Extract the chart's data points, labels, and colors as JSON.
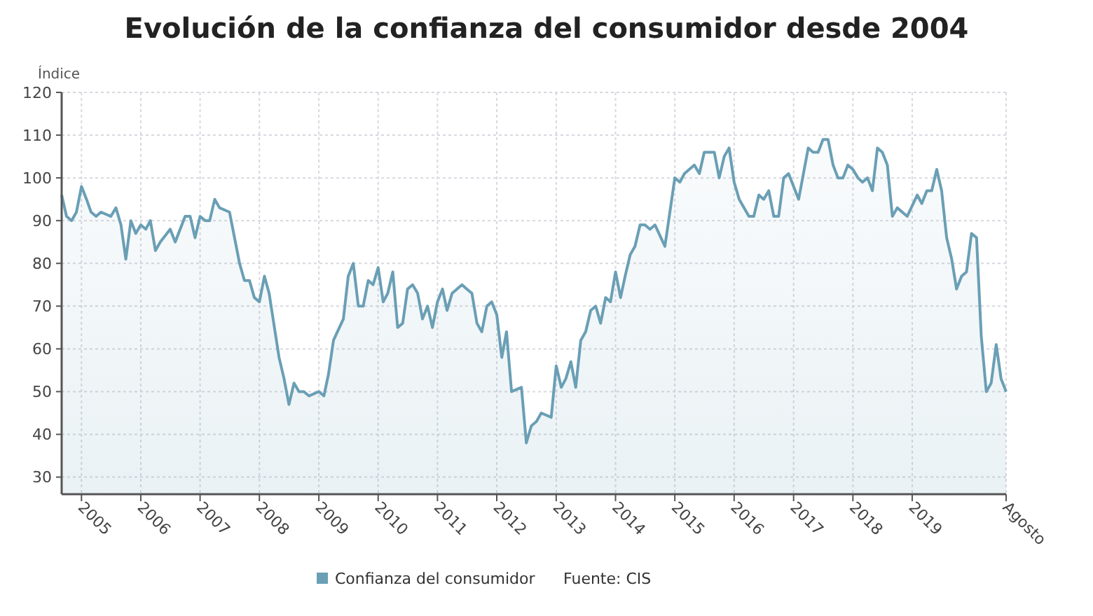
{
  "chart_data": {
    "type": "area",
    "title": "Evolución de la confianza del consumidor desde 2004",
    "ylabel": "Índice",
    "x": [
      "2004-09",
      "2004-10",
      "2004-11",
      "2004-12",
      "2005-01",
      "2005-02",
      "2005-03",
      "2005-04",
      "2005-05",
      "2005-07",
      "2005-08",
      "2005-09",
      "2005-10",
      "2005-11",
      "2005-12",
      "2006-01",
      "2006-02",
      "2006-03",
      "2006-04",
      "2006-05",
      "2006-07",
      "2006-08",
      "2006-10",
      "2006-11",
      "2006-12",
      "2007-01",
      "2007-02",
      "2007-03",
      "2007-04",
      "2007-05",
      "2007-07",
      "2007-09",
      "2007-10",
      "2007-11",
      "2007-12",
      "2008-01",
      "2008-02",
      "2008-03",
      "2008-05",
      "2008-06",
      "2008-07",
      "2008-08",
      "2008-09",
      "2008-10",
      "2008-11",
      "2009-01",
      "2009-02",
      "2009-03",
      "2009-04",
      "2009-06",
      "2009-07",
      "2009-08",
      "2009-09",
      "2009-10",
      "2009-11",
      "2009-12",
      "2010-01",
      "2010-02",
      "2010-03",
      "2010-04",
      "2010-05",
      "2010-06",
      "2010-07",
      "2010-08",
      "2010-09",
      "2010-10",
      "2010-11",
      "2010-12",
      "2011-01",
      "2011-02",
      "2011-03",
      "2011-04",
      "2011-06",
      "2011-07",
      "2011-08",
      "2011-09",
      "2011-10",
      "2011-11",
      "2011-12",
      "2012-01",
      "2012-02",
      "2012-03",
      "2012-04",
      "2012-06",
      "2012-07",
      "2012-08",
      "2012-09",
      "2012-10",
      "2012-12",
      "2013-01",
      "2013-02",
      "2013-03",
      "2013-04",
      "2013-05",
      "2013-06",
      "2013-07",
      "2013-08",
      "2013-09",
      "2013-10",
      "2013-11",
      "2013-12",
      "2014-01",
      "2014-02",
      "2014-03",
      "2014-04",
      "2014-05",
      "2014-06",
      "2014-07",
      "2014-08",
      "2014-09",
      "2014-11",
      "2015-01",
      "2015-02",
      "2015-03",
      "2015-05",
      "2015-06",
      "2015-07",
      "2015-09",
      "2015-10",
      "2015-11",
      "2015-12",
      "2016-01",
      "2016-02",
      "2016-04",
      "2016-05",
      "2016-06",
      "2016-07",
      "2016-08",
      "2016-09",
      "2016-10",
      "2016-11",
      "2016-12",
      "2017-02",
      "2017-04",
      "2017-05",
      "2017-06",
      "2017-07",
      "2017-08",
      "2017-09",
      "2017-10",
      "2017-11",
      "2017-12",
      "2018-01",
      "2018-02",
      "2018-03",
      "2018-04",
      "2018-05",
      "2018-06",
      "2018-07",
      "2018-08",
      "2018-09",
      "2018-10",
      "2018-12",
      "2019-02",
      "2019-03",
      "2019-04",
      "2019-05",
      "2019-06",
      "2019-07",
      "2019-08",
      "2019-09",
      "2019-10",
      "2019-11",
      "2019-12",
      "2020-01",
      "2020-02",
      "2020-03",
      "2020-04",
      "2020-05",
      "2020-06",
      "2020-07",
      "2020-08"
    ],
    "series": [
      {
        "name": "Confianza del consumidor",
        "color": "#6a9fb5",
        "values": [
          96,
          91,
          90,
          92,
          98,
          95,
          92,
          91,
          92,
          91,
          93,
          89,
          81,
          90,
          87,
          89,
          88,
          90,
          83,
          85,
          88,
          85,
          91,
          91,
          86,
          91,
          90,
          90,
          95,
          93,
          92,
          80,
          76,
          76,
          72,
          71,
          77,
          73,
          58,
          53,
          47,
          52,
          50,
          50,
          49,
          50,
          49,
          54,
          62,
          67,
          77,
          80,
          70,
          70,
          76,
          75,
          79,
          71,
          73,
          78,
          65,
          66,
          74,
          75,
          73,
          67,
          70,
          65,
          71,
          74,
          69,
          73,
          75,
          74,
          73,
          66,
          64,
          70,
          71,
          68,
          58,
          64,
          50,
          51,
          38,
          42,
          43,
          45,
          44,
          56,
          51,
          53,
          57,
          51,
          62,
          64,
          69,
          70,
          66,
          72,
          71,
          78,
          72,
          77,
          82,
          84,
          89,
          89,
          88,
          89,
          84,
          100,
          99,
          101,
          103,
          101,
          106,
          106,
          100,
          105,
          107,
          99,
          95,
          91,
          91,
          96,
          95,
          97,
          91,
          91,
          100,
          101,
          95,
          107,
          106,
          106,
          109,
          109,
          103,
          100,
          100,
          103,
          102,
          100,
          99,
          100,
          97,
          107,
          106,
          103,
          91,
          93,
          91,
          96,
          94,
          97,
          97,
          102,
          97,
          86,
          81,
          74,
          77,
          78,
          87,
          86,
          63,
          50,
          52,
          61,
          53,
          50
        ]
      }
    ],
    "xlim": [
      "2004-09",
      "2020-08"
    ],
    "xticks": [
      {
        "value": "2005-01",
        "label": "2005"
      },
      {
        "value": "2006-01",
        "label": "2006"
      },
      {
        "value": "2007-01",
        "label": "2007"
      },
      {
        "value": "2008-01",
        "label": "2008"
      },
      {
        "value": "2009-01",
        "label": "2009"
      },
      {
        "value": "2010-01",
        "label": "2010"
      },
      {
        "value": "2011-01",
        "label": "2011"
      },
      {
        "value": "2012-01",
        "label": "2012"
      },
      {
        "value": "2013-01",
        "label": "2013"
      },
      {
        "value": "2014-01",
        "label": "2014"
      },
      {
        "value": "2015-01",
        "label": "2015"
      },
      {
        "value": "2016-01",
        "label": "2016"
      },
      {
        "value": "2017-01",
        "label": "2017"
      },
      {
        "value": "2018-01",
        "label": "2018"
      },
      {
        "value": "2019-01",
        "label": "2019"
      },
      {
        "value": "2020-08",
        "label": "Agosto"
      }
    ],
    "ylim": [
      26,
      120
    ],
    "yticks": [
      30,
      40,
      50,
      60,
      70,
      80,
      90,
      100,
      110,
      120
    ],
    "grid": true,
    "legend": "bottom",
    "marker": "none",
    "line_style": "solid",
    "annotations": [
      "Fuente: CIS"
    ]
  }
}
